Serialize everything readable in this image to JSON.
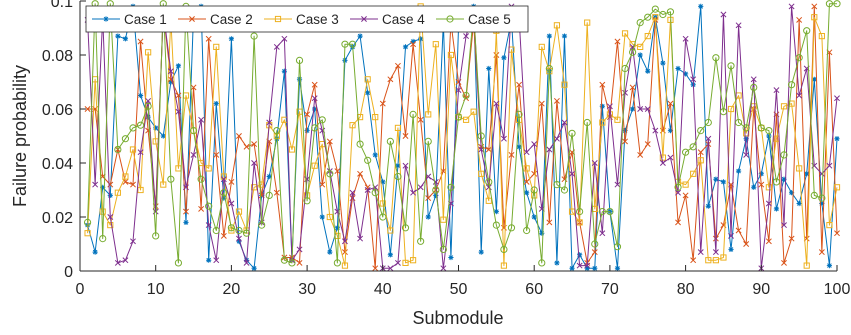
{
  "chart_data": {
    "type": "line",
    "xlabel": "Submodule",
    "ylabel": "Failure probability",
    "xlim": [
      0,
      100
    ],
    "ylim": [
      0,
      0.1
    ],
    "xticks": [
      0,
      10,
      20,
      30,
      40,
      50,
      60,
      70,
      80,
      90,
      100
    ],
    "yticks": [
      0,
      0.02,
      0.04,
      0.06,
      0.08,
      0.1
    ],
    "xtick_labels": [
      "0",
      "10",
      "20",
      "30",
      "40",
      "50",
      "60",
      "70",
      "80",
      "90",
      "100"
    ],
    "ytick_labels": [
      "0",
      "0.02",
      "0.04",
      "0.06",
      "0.08",
      "0.1"
    ],
    "grid": false,
    "legend_position": "top-left",
    "legend_orientation": "horizontal",
    "x": [
      1,
      2,
      3,
      4,
      5,
      6,
      7,
      8,
      9,
      10,
      11,
      12,
      13,
      14,
      15,
      16,
      17,
      18,
      19,
      20,
      21,
      22,
      23,
      24,
      25,
      26,
      27,
      28,
      29,
      30,
      31,
      32,
      33,
      34,
      35,
      36,
      37,
      38,
      39,
      40,
      41,
      42,
      43,
      44,
      45,
      46,
      47,
      48,
      49,
      50,
      51,
      52,
      53,
      54,
      55,
      56,
      57,
      58,
      59,
      60,
      61,
      62,
      63,
      64,
      65,
      66,
      67,
      68,
      69,
      70,
      71,
      72,
      73,
      74,
      75,
      76,
      77,
      78,
      79,
      80,
      81,
      82,
      83,
      84,
      85,
      86,
      87,
      88,
      89,
      90,
      91,
      92,
      93,
      94,
      95,
      96,
      97,
      98,
      99,
      100
    ],
    "series": [
      {
        "name": "Case 1",
        "color": "#0072BD",
        "marker": "asterisk",
        "values": [
          0.017,
          0.007,
          0.031,
          0.028,
          0.087,
          0.086,
          0.098,
          0.065,
          0.057,
          0.053,
          0.05,
          0.07,
          0.076,
          0.018,
          0.095,
          0.098,
          0.004,
          0.062,
          0.027,
          0.086,
          0.011,
          0.004,
          0.001,
          0.028,
          0.035,
          0.049,
          0.074,
          0.004,
          0.071,
          0.052,
          0.06,
          0.02,
          0.007,
          0.016,
          0.078,
          0.083,
          0.087,
          0.066,
          0.043,
          0.033,
          0.006,
          0.039,
          0.083,
          0.085,
          0.086,
          0.02,
          0.028,
          0.092,
          0.005,
          0.09,
          0.091,
          0.098,
          0.007,
          0.075,
          0.022,
          0.079,
          0.093,
          0.046,
          0.029,
          0.02,
          0.014,
          0.087,
          0.003,
          0.087,
          0.001,
          0.006,
          0.001,
          0.001,
          0.061,
          0.022,
          0.001,
          0.052,
          0.06,
          0.08,
          0.074,
          0.094,
          0.077,
          0.052,
          0.075,
          0.073,
          0.069,
          0.098,
          0.024,
          0.034,
          0.033,
          0.008,
          0.037,
          0.049,
          0.031,
          0.036,
          0.05,
          0.023,
          0.034,
          0.029,
          0.025,
          0.036,
          0.071,
          0.025,
          0.002,
          0.049
        ]
      },
      {
        "name": "Case 2",
        "color": "#D95319",
        "marker": "x",
        "values": [
          0.06,
          0.06,
          0.035,
          0.032,
          0.045,
          0.033,
          0.032,
          0.085,
          0.052,
          0.024,
          0.096,
          0.071,
          0.065,
          0.022,
          0.068,
          0.023,
          0.086,
          0.043,
          0.013,
          0.033,
          0.05,
          0.046,
          0.047,
          0.028,
          0.048,
          0.029,
          0.005,
          0.005,
          0.003,
          0.058,
          0.069,
          0.032,
          0.048,
          0.037,
          0.007,
          0.027,
          0.036,
          0.031,
          0.001,
          0.062,
          0.071,
          0.076,
          0.05,
          0.084,
          0.056,
          0.027,
          0.03,
          0.037,
          0.092,
          0.07,
          0.064,
          0.092,
          0.046,
          0.045,
          0.08,
          0.016,
          0.043,
          0.069,
          0.033,
          0.036,
          0.062,
          0.018,
          0.063,
          0.034,
          0.044,
          0.018,
          0.003,
          0.007,
          0.069,
          0.057,
          0.085,
          0.048,
          0.068,
          0.043,
          0.047,
          0.093,
          0.052,
          0.062,
          0.018,
          0.028,
          0.004,
          0.044,
          0.047,
          0.012,
          0.017,
          0.032,
          0.015,
          0.01,
          0.06,
          0.032,
          0.011,
          0.058,
          0.003,
          0.012,
          0.093,
          0.012,
          0.098,
          0.007,
          0.081,
          0.014
        ]
      },
      {
        "name": "Case 3",
        "color": "#EDB120",
        "marker": "square",
        "values": [
          0.014,
          0.071,
          0.022,
          0.017,
          0.029,
          0.035,
          0.045,
          0.03,
          0.081,
          0.048,
          0.032,
          0.093,
          0.038,
          0.065,
          0.052,
          0.04,
          0.038,
          0.083,
          0.035,
          0.015,
          0.022,
          0.015,
          0.031,
          0.032,
          0.054,
          0.05,
          0.056,
          0.045,
          0.059,
          0.028,
          0.039,
          0.047,
          0.02,
          0.013,
          0.002,
          0.054,
          0.057,
          0.071,
          0.057,
          0.025,
          0.015,
          0.053,
          0.003,
          0.004,
          0.098,
          0.058,
          0.084,
          0.019,
          0.08,
          0.057,
          0.056,
          0.059,
          0.036,
          0.026,
          0.089,
          0.002,
          0.082,
          0.056,
          0.038,
          0.028,
          0.083,
          0.074,
          0.091,
          0.069,
          0.022,
          0.018,
          0.092,
          0.023,
          0.055,
          0.058,
          0.056,
          0.088,
          0.084,
          0.083,
          0.087,
          0.094,
          0.042,
          0.093,
          0.033,
          0.032,
          0.036,
          0.041,
          0.004,
          0.004,
          0.005,
          0.06,
          0.065,
          0.051,
          0.061,
          0.053,
          0.031,
          0.049,
          0.061,
          0.062,
          0.038,
          0.002,
          0.094,
          0.087,
          0.017,
          0.031
        ]
      },
      {
        "name": "Case 4",
        "color": "#7E2F8E",
        "marker": "x",
        "values": [
          0.093,
          0.032,
          0.094,
          0.02,
          0.003,
          0.004,
          0.011,
          0.044,
          0.063,
          0.022,
          0.096,
          0.074,
          0.059,
          0.031,
          0.043,
          0.056,
          0.017,
          0.004,
          0.034,
          0.025,
          0.012,
          0.003,
          0.04,
          0.018,
          0.055,
          0.083,
          0.086,
          0.004,
          0.008,
          0.034,
          0.064,
          0.052,
          0.037,
          0.022,
          0.011,
          0.029,
          0.012,
          0.03,
          0.031,
          0.001,
          0.001,
          0.003,
          0.039,
          0.029,
          0.031,
          0.035,
          0.033,
          0.001,
          0.025,
          0.067,
          0.087,
          0.097,
          0.045,
          0.031,
          0.062,
          0.049,
          0.098,
          0.094,
          0.044,
          0.047,
          0.023,
          0.045,
          0.049,
          0.055,
          0.036,
          0.002,
          0.002,
          0.04,
          0.014,
          0.061,
          0.032,
          0.066,
          0.083,
          0.06,
          0.06,
          0.052,
          0.04,
          0.042,
          0.029,
          0.086,
          0.071,
          0.007,
          0.049,
          0.007,
          0.095,
          0.013,
          0.091,
          0.043,
          0.071,
          0.001,
          0.025,
          0.067,
          0.017,
          0.098,
          0.065,
          0.075,
          0.039,
          0.036,
          0.039,
          0.064
        ]
      },
      {
        "name": "Case 5",
        "color": "#77AC30",
        "marker": "circle",
        "values": [
          0.018,
          0.099,
          0.012,
          0.099,
          0.045,
          0.049,
          0.053,
          0.054,
          0.061,
          0.013,
          0.099,
          0.034,
          0.003,
          0.098,
          0.052,
          0.034,
          0.024,
          0.015,
          0.029,
          0.016,
          0.015,
          0.014,
          0.087,
          0.017,
          0.028,
          0.052,
          0.004,
          0.003,
          0.078,
          0.026,
          0.053,
          0.056,
          0.036,
          0.003,
          0.084,
          0.084,
          0.047,
          0.041,
          0.029,
          0.02,
          0.048,
          0.035,
          0.016,
          0.058,
          0.011,
          0.048,
          0.03,
          0.008,
          0.031,
          0.057,
          0.065,
          0.096,
          0.05,
          0.033,
          0.017,
          0.008,
          0.016,
          0.058,
          0.015,
          0.03,
          0.003,
          0.075,
          0.032,
          0.03,
          0.051,
          0.022,
          0.055,
          0.01,
          0.022,
          0.022,
          0.009,
          0.075,
          0.081,
          0.092,
          0.094,
          0.097,
          0.095,
          0.096,
          0.031,
          0.044,
          0.046,
          0.052,
          0.055,
          0.079,
          0.059,
          0.076,
          0.055,
          0.053,
          0.068,
          0.053,
          0.052,
          0.033,
          0.043,
          0.069,
          0.079,
          0.089,
          0.028,
          0.027,
          0.099,
          0.099
        ]
      }
    ]
  }
}
